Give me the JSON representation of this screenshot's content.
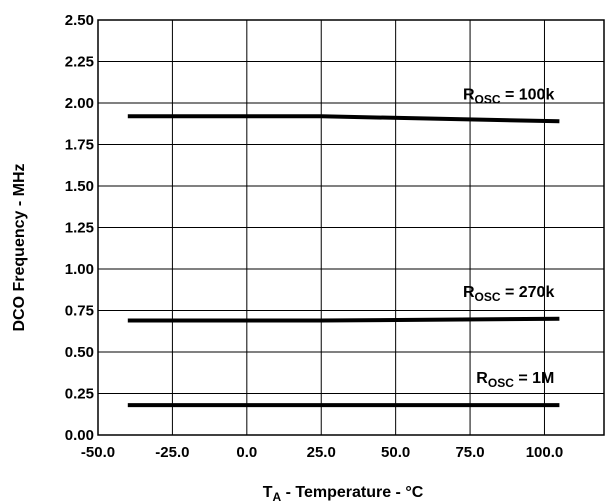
{
  "chart_data": {
    "type": "line",
    "xlabel_parts": [
      "T",
      "A",
      " - Temperature - °C"
    ],
    "ylabel": "DCO Frequency - MHz",
    "xlim": [
      -50,
      120
    ],
    "ylim": [
      0,
      2.5
    ],
    "x_ticks": [
      "-50.0",
      "-25.0",
      "0.0",
      "25.0",
      "50.0",
      "75.0",
      "100.0"
    ],
    "y_ticks": [
      "0.00",
      "0.25",
      "0.50",
      "0.75",
      "1.00",
      "1.25",
      "1.50",
      "1.75",
      "2.00",
      "2.25",
      "2.50"
    ],
    "grid": true,
    "series": [
      {
        "label_parts": [
          "R",
          "OSC",
          " = 100k"
        ],
        "x": [
          -40,
          25,
          105
        ],
        "y": [
          1.92,
          1.92,
          1.89
        ]
      },
      {
        "label_parts": [
          "R",
          "OSC",
          " = 270k"
        ],
        "x": [
          -40,
          25,
          105
        ],
        "y": [
          0.69,
          0.69,
          0.7
        ]
      },
      {
        "label_parts": [
          "R",
          "OSC",
          " = 1M"
        ],
        "x": [
          -40,
          25,
          105
        ],
        "y": [
          0.18,
          0.18,
          0.18
        ]
      }
    ]
  }
}
